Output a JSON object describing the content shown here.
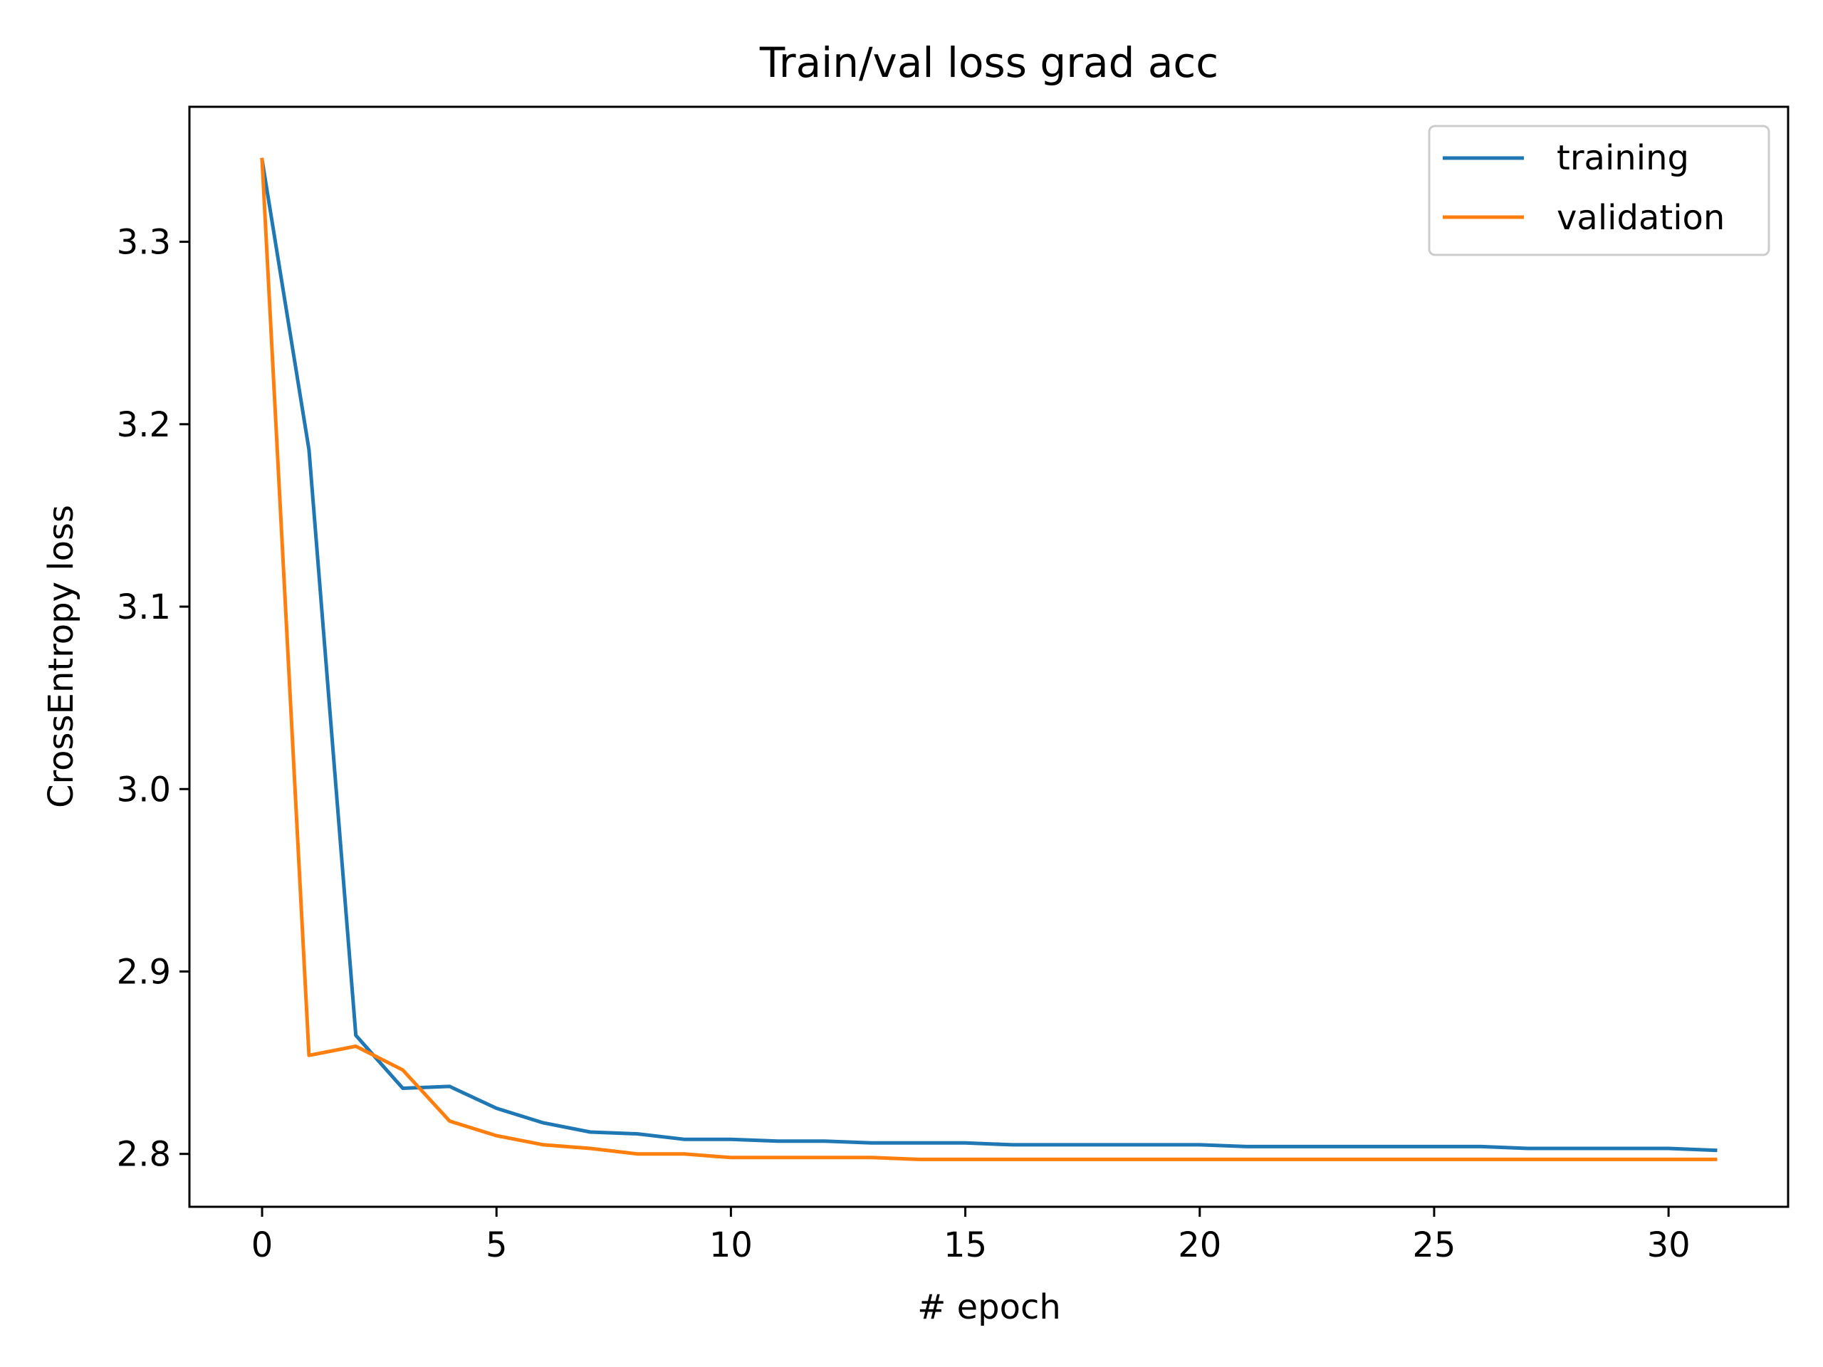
{
  "chart_data": {
    "type": "line",
    "title": "Train/val loss grad acc",
    "xlabel": "# epoch",
    "ylabel": "CrossEntropy loss",
    "xlim": [
      -1.55,
      32.55
    ],
    "ylim": [
      2.771,
      3.374
    ],
    "x_ticks": [
      0,
      5,
      10,
      15,
      20,
      25,
      30
    ],
    "x_tick_labels": [
      "0",
      "5",
      "10",
      "15",
      "20",
      "25",
      "30"
    ],
    "y_ticks": [
      2.8,
      2.9,
      3.0,
      3.1,
      3.2,
      3.3
    ],
    "y_tick_labels": [
      "2.8",
      "2.9",
      "3.0",
      "3.1",
      "3.2",
      "3.3"
    ],
    "grid": false,
    "legend_position": "top-right",
    "x": [
      0,
      1,
      2,
      3,
      4,
      5,
      6,
      7,
      8,
      9,
      10,
      11,
      12,
      13,
      14,
      15,
      16,
      17,
      18,
      19,
      20,
      21,
      22,
      23,
      24,
      25,
      26,
      27,
      28,
      29,
      30,
      31
    ],
    "series": [
      {
        "name": "training",
        "color": "#1f77b4",
        "values": [
          3.345,
          3.186,
          2.865,
          2.836,
          2.837,
          2.825,
          2.817,
          2.812,
          2.811,
          2.808,
          2.808,
          2.807,
          2.807,
          2.806,
          2.806,
          2.806,
          2.805,
          2.805,
          2.805,
          2.805,
          2.805,
          2.804,
          2.804,
          2.804,
          2.804,
          2.804,
          2.804,
          2.803,
          2.803,
          2.803,
          2.803,
          2.802
        ]
      },
      {
        "name": "validation",
        "color": "#ff7f0e",
        "values": [
          3.345,
          2.854,
          2.859,
          2.846,
          2.818,
          2.81,
          2.805,
          2.803,
          2.8,
          2.8,
          2.798,
          2.798,
          2.798,
          2.798,
          2.797,
          2.797,
          2.797,
          2.797,
          2.797,
          2.797,
          2.797,
          2.797,
          2.797,
          2.797,
          2.797,
          2.797,
          2.797,
          2.797,
          2.797,
          2.797,
          2.797,
          2.797
        ]
      }
    ]
  }
}
